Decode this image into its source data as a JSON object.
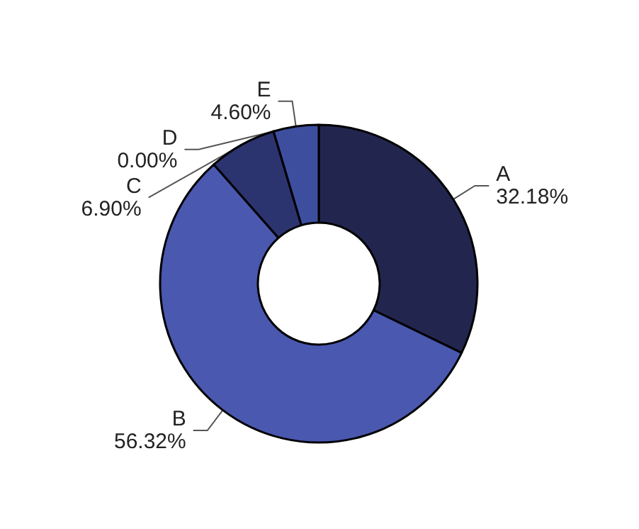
{
  "chart_data": {
    "type": "donut",
    "categories": [
      "A",
      "B",
      "C",
      "D",
      "E"
    ],
    "values": [
      32.18,
      56.32,
      6.9,
      0.0,
      4.6
    ],
    "value_labels": [
      "32.18%",
      "56.32%",
      "6.90%",
      "0.00%",
      "4.60%"
    ],
    "colors": [
      "#22264f",
      "#4a58b0",
      "#2c3470",
      "#262b5c",
      "#3e4e9f"
    ]
  }
}
